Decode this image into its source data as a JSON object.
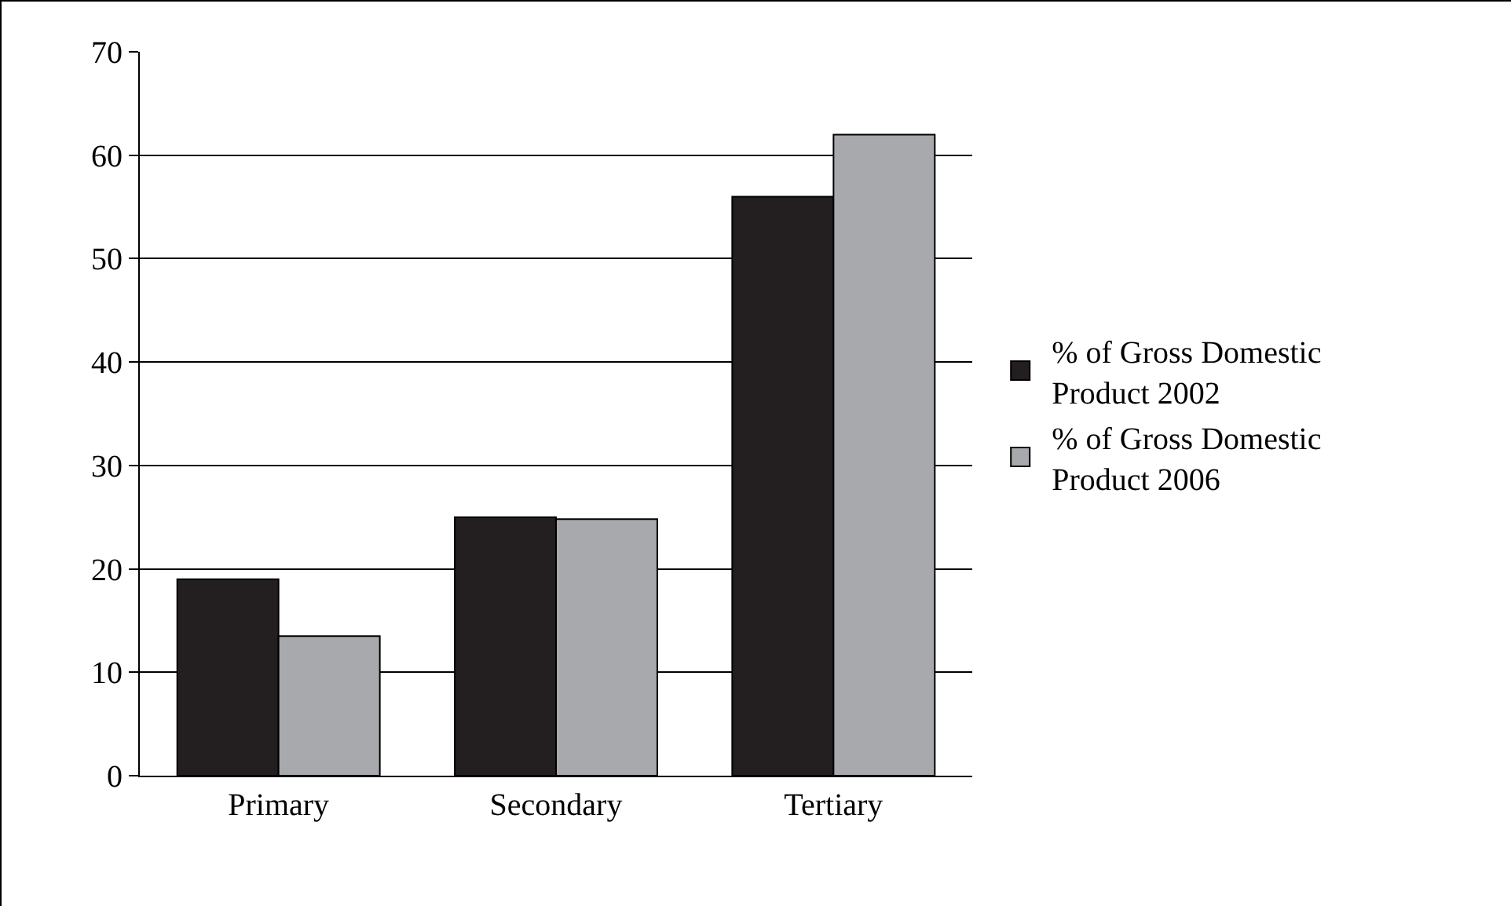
{
  "chart_data": {
    "type": "bar",
    "categories": [
      "Primary",
      "Secondary",
      "Tertiary"
    ],
    "series": [
      {
        "name": "% of Gross Domestic Product 2002",
        "color": "#231f20",
        "values": [
          19,
          25,
          56
        ]
      },
      {
        "name": "% of Gross Domestic Product 2006",
        "color": "#a7a9ac",
        "values": [
          13.5,
          24.8,
          62
        ]
      }
    ],
    "ylim": [
      0,
      70
    ],
    "yticks": [
      0,
      10,
      20,
      30,
      40,
      50,
      60,
      70
    ],
    "grid": "y",
    "legend": "right"
  }
}
